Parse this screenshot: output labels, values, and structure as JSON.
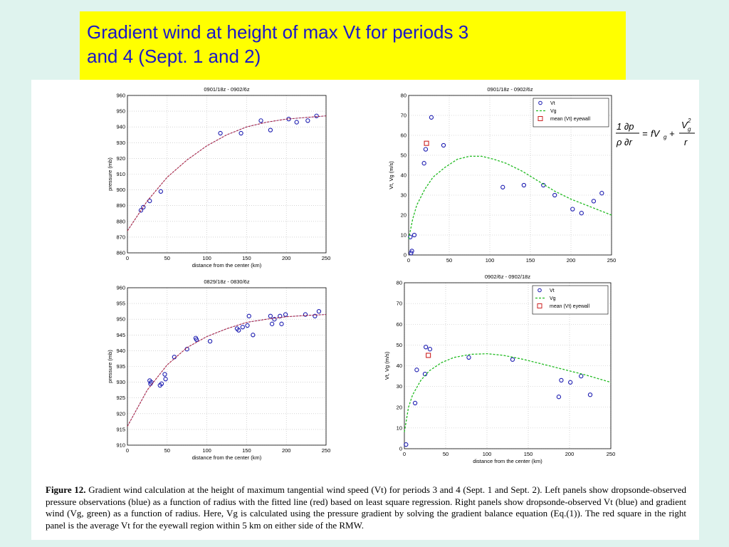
{
  "title": {
    "line1": "Gradient wind at height of max Vt for periods 3",
    "line2": "and 4 (Sept. 1 and 2)"
  },
  "equation": {
    "lhs_num": "1  ∂p",
    "lhs_den": "ρ  ∂r",
    "eq": "=",
    "fv": "fV",
    "fv_sub": "g",
    "plus": "+",
    "v2": "V",
    "v2_sub": "g",
    "v2_sup": "2",
    "r": "r"
  },
  "caption": {
    "label": "Figure 12.",
    "text": "Gradient wind calculation at the height of maximum tangential wind speed (Vt) for periods 3 and 4 (Sept. 1 and Sept. 2). Left panels show dropsonde-observed pressure observations (blue) as a function of radius with the fitted line (red) based on least square regression. Right panels show dropsonde-observed Vt (blue) and gradient wind (Vg, green) as a function of radius. Here, Vg is calculated using the pressure gradient by solving the gradient balance equation (Eq.(1)). The red square in the right panel is the average Vt for the eyewall region within 5 km on either side of the RMW."
  },
  "chart_data": [
    {
      "type": "scatter",
      "title": "0901/18z - 0902/6z",
      "xlabel": "distance from the center (km)",
      "ylabel": "pressure (mb)",
      "xlim": [
        0,
        250
      ],
      "ylim": [
        860,
        960
      ],
      "xticks": [
        0,
        50,
        100,
        150,
        200,
        250
      ],
      "yticks": [
        860,
        870,
        880,
        890,
        900,
        910,
        920,
        930,
        940,
        950,
        960
      ],
      "grid": true,
      "series": [
        {
          "kind": "points",
          "color": "#1a1ab0",
          "x": [
            17,
            20,
            28,
            42,
            117,
            143,
            168,
            180,
            203,
            213,
            227,
            238
          ],
          "y": [
            887,
            889,
            893,
            899,
            936,
            936,
            944,
            938,
            945,
            943,
            944,
            947
          ]
        },
        {
          "kind": "fit",
          "color": "#cc2222",
          "x": [
            0,
            25,
            50,
            75,
            100,
            125,
            150,
            175,
            200,
            225,
            250
          ],
          "y": [
            874,
            893,
            908,
            919,
            928,
            935,
            940,
            943,
            945,
            946,
            947
          ]
        }
      ]
    },
    {
      "type": "scatter",
      "title": "0901/18z - 0902/6z",
      "xlabel": "",
      "ylabel": "Vt, Vg (m/s)",
      "xlim": [
        0,
        250
      ],
      "ylim": [
        0,
        80
      ],
      "xticks": [
        0,
        50,
        100,
        150,
        200,
        250
      ],
      "yticks": [
        0,
        10,
        20,
        30,
        40,
        50,
        60,
        70,
        80
      ],
      "grid": true,
      "legend": [
        "Vt",
        "Vg",
        "mean (Vt) eyewall"
      ],
      "legend_position": "top-right",
      "series": [
        {
          "name": "Vt",
          "kind": "points",
          "color": "#1a1ab0",
          "x": [
            2,
            4,
            7,
            3,
            19,
            21,
            28,
            43,
            116,
            142,
            166,
            180,
            202,
            213,
            228,
            238
          ],
          "y": [
            9,
            2,
            10,
            1,
            46,
            53,
            69,
            55,
            34,
            35,
            35,
            30,
            23,
            21,
            27,
            31
          ]
        },
        {
          "name": "Vg",
          "kind": "dashed",
          "color": "#22bb22",
          "x": [
            0,
            5,
            10,
            20,
            30,
            45,
            60,
            75,
            90,
            105,
            120,
            140,
            160,
            180,
            200,
            225,
            250
          ],
          "y": [
            8,
            18,
            25,
            33,
            39,
            44,
            48,
            49.5,
            49.5,
            48,
            46,
            42,
            37,
            32,
            28,
            24,
            20
          ]
        },
        {
          "name": "mean (Vt) eyewall",
          "kind": "square",
          "color": "#cc2222",
          "x": [
            22
          ],
          "y": [
            56
          ]
        }
      ]
    },
    {
      "type": "scatter",
      "title": "0829/18z - 0830/6z",
      "xlabel": "distance from the center (km)",
      "ylabel": "pressure (mb)",
      "xlim": [
        0,
        250
      ],
      "ylim": [
        910,
        960
      ],
      "xticks": [
        0,
        50,
        100,
        150,
        200,
        250
      ],
      "yticks": [
        910,
        915,
        920,
        925,
        930,
        935,
        940,
        945,
        950,
        955,
        960
      ],
      "grid": true,
      "series": [
        {
          "kind": "points",
          "color": "#1a1ab0",
          "x": [
            28,
            29,
            30,
            41,
            43,
            47,
            48,
            59,
            75,
            86,
            87,
            104,
            138,
            140,
            145,
            151,
            153,
            158,
            180,
            182,
            185,
            192,
            194,
            199,
            224,
            236,
            241
          ],
          "y": [
            930.5,
            929.5,
            930,
            929,
            929.5,
            932.5,
            931,
            938,
            940.5,
            944,
            943.5,
            943,
            947,
            946.5,
            947.5,
            948,
            951,
            945,
            951,
            948.5,
            950,
            951,
            948.5,
            951.5,
            951.5,
            951,
            952.5
          ]
        },
        {
          "kind": "fit",
          "color": "#cc2222",
          "x": [
            0,
            25,
            50,
            75,
            100,
            125,
            150,
            175,
            200,
            225,
            250
          ],
          "y": [
            916,
            927.5,
            935.5,
            941,
            944.5,
            947,
            949,
            950,
            950.8,
            951.2,
            951.5
          ]
        }
      ]
    },
    {
      "type": "scatter",
      "title": "0902/6z - 0902/18z",
      "xlabel": "distance from the center (km)",
      "ylabel": "Vt, Vg (m/s)",
      "xlim": [
        0,
        250
      ],
      "ylim": [
        0,
        80
      ],
      "xticks": [
        0,
        50,
        100,
        150,
        200,
        250
      ],
      "yticks": [
        0,
        10,
        20,
        30,
        40,
        50,
        60,
        70,
        80
      ],
      "grid": true,
      "legend": [
        "Vt",
        "Vg",
        "mean (Vt) eyewall"
      ],
      "legend_position": "top-right",
      "series": [
        {
          "name": "Vt",
          "kind": "points",
          "color": "#1a1ab0",
          "x": [
            2,
            13,
            15,
            25,
            26,
            31,
            78,
            131,
            187,
            190,
            201,
            214,
            225
          ],
          "y": [
            2,
            22,
            38,
            36,
            49,
            48,
            44,
            43,
            25,
            33,
            32,
            35,
            26
          ]
        },
        {
          "name": "Vg",
          "kind": "dashed",
          "color": "#22bb22",
          "x": [
            0,
            5,
            10,
            20,
            30,
            45,
            60,
            80,
            100,
            120,
            145,
            170,
            195,
            220,
            250
          ],
          "y": [
            8,
            20,
            26,
            33,
            37.5,
            41.5,
            44,
            45.5,
            45.8,
            45,
            43,
            40.5,
            38,
            35.5,
            32
          ]
        },
        {
          "name": "mean (Vt) eyewall",
          "kind": "square",
          "color": "#cc2222",
          "x": [
            29
          ],
          "y": [
            45
          ]
        }
      ]
    }
  ]
}
